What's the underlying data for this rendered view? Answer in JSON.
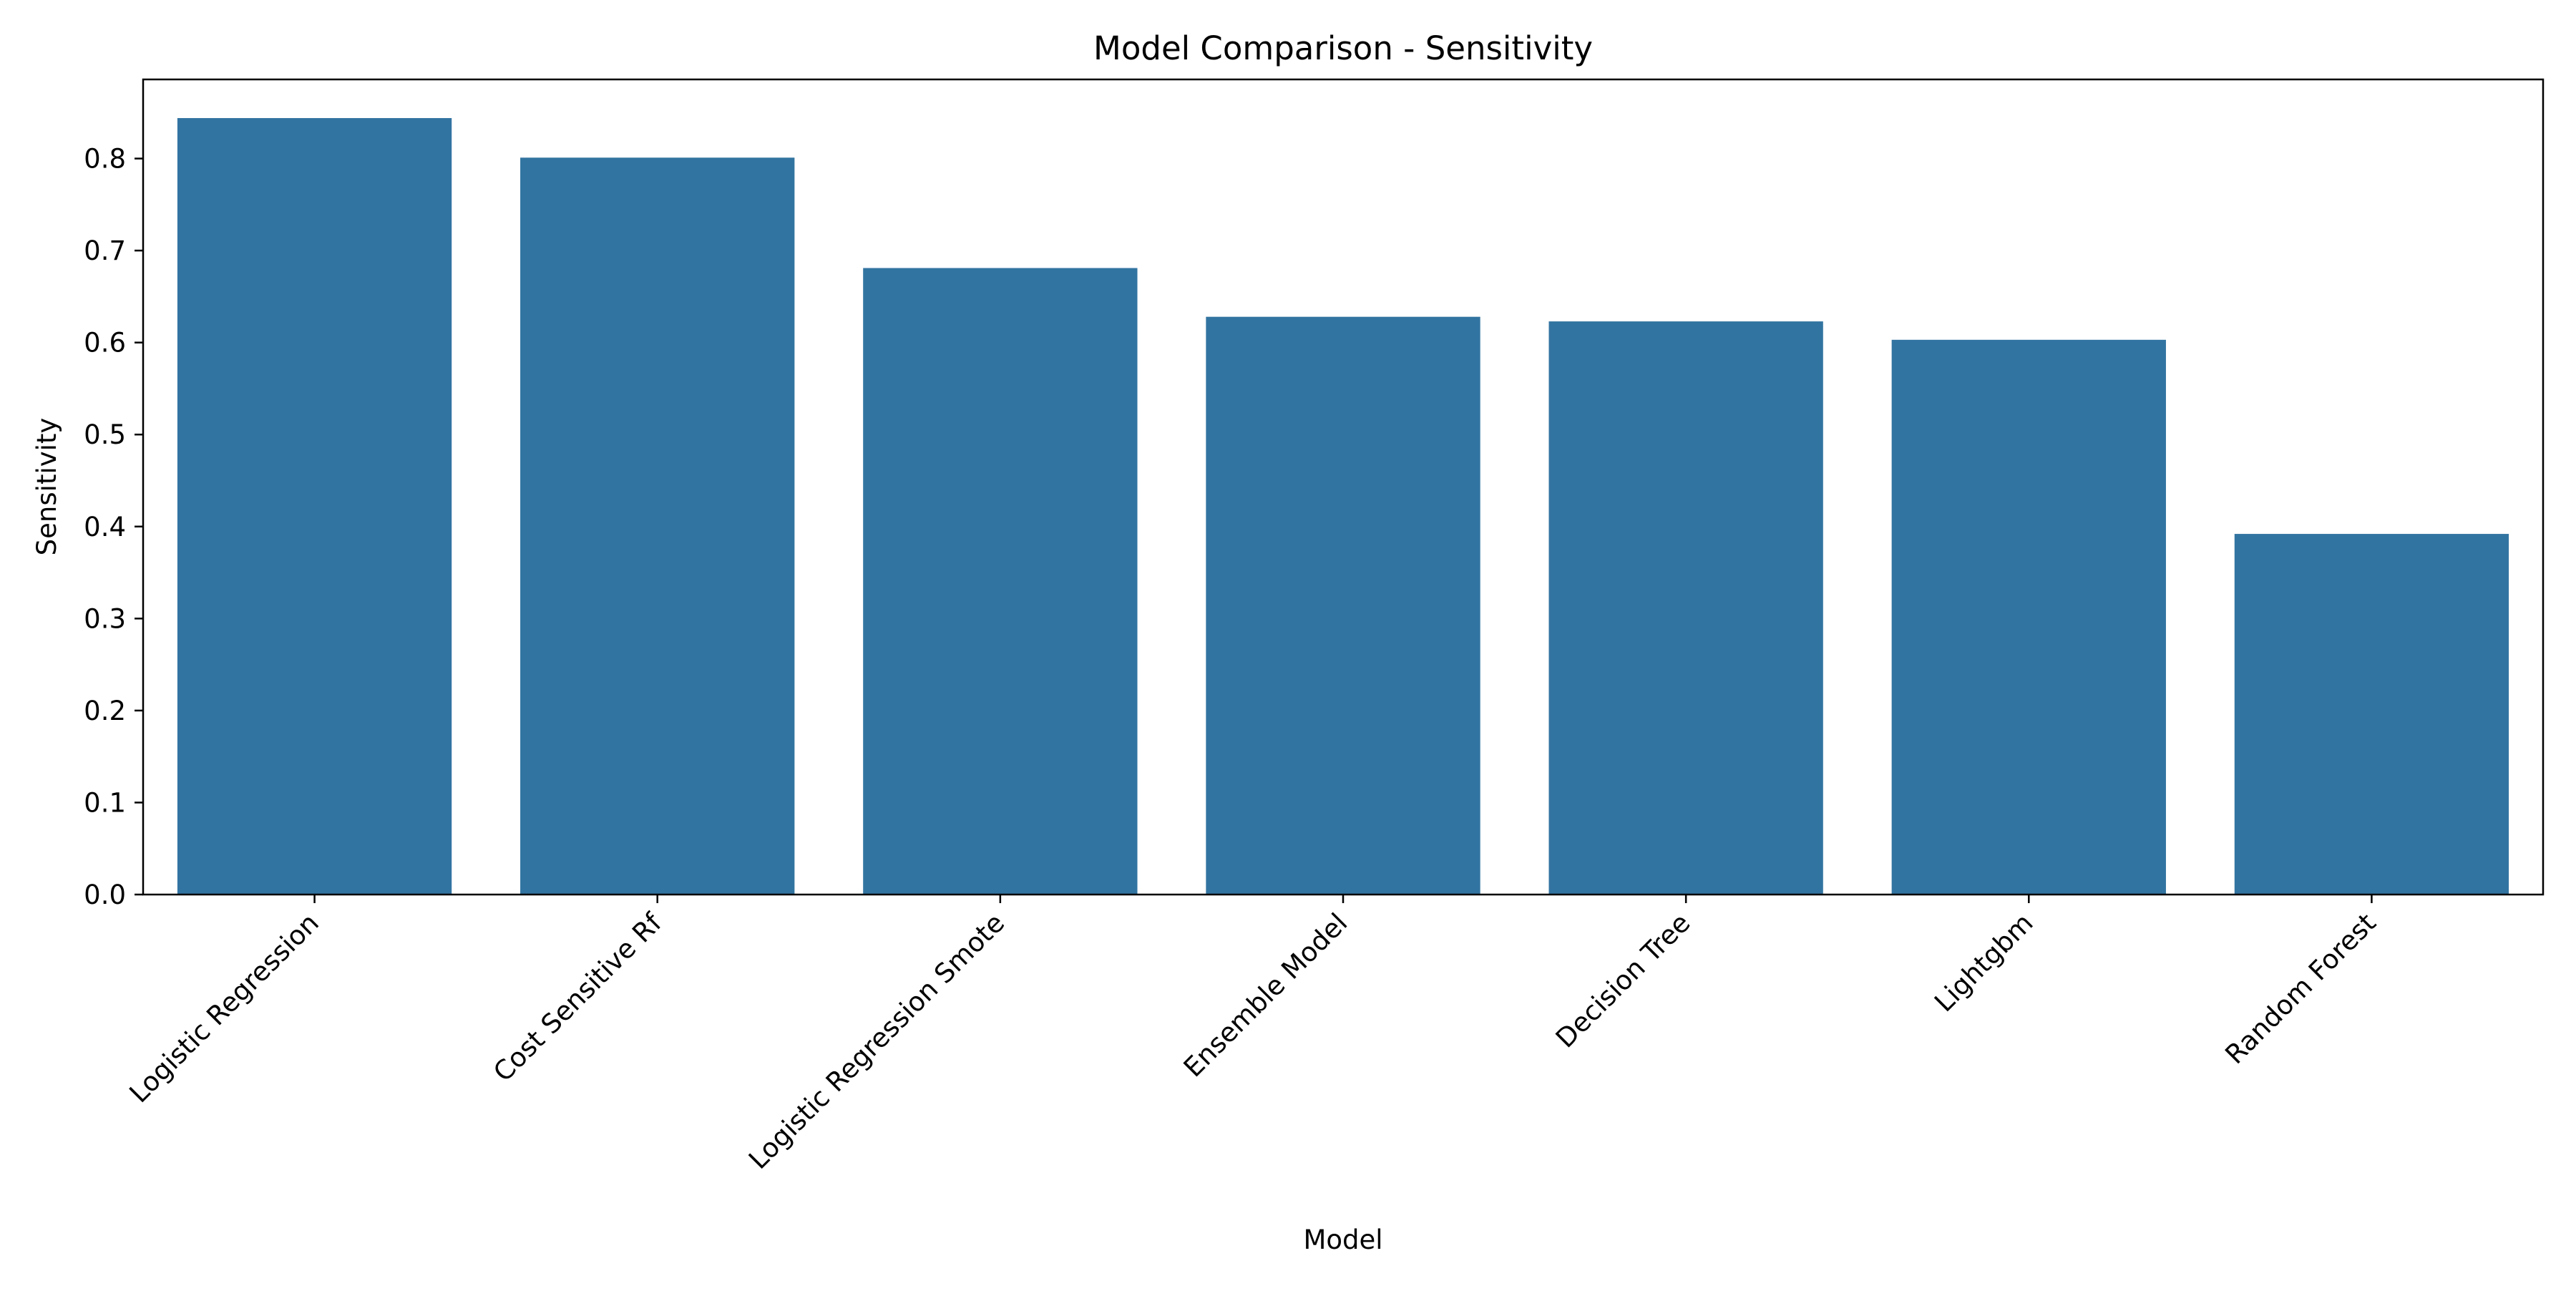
{
  "chart_data": {
    "type": "bar",
    "title": "Model Comparison - Sensitivity",
    "xlabel": "Model",
    "ylabel": "Sensitivity",
    "categories": [
      "Logistic Regression",
      "Cost Sensitive Rf",
      "Logistic Regression Smote",
      "Ensemble Model",
      "Decision Tree",
      "Lightgbm",
      "Random Forest"
    ],
    "values": [
      0.844,
      0.801,
      0.681,
      0.628,
      0.623,
      0.603,
      0.392
    ],
    "ylim": [
      0,
      0.886
    ],
    "yticks": [
      0.0,
      0.1,
      0.2,
      0.3,
      0.4,
      0.5,
      0.6,
      0.7,
      0.8
    ],
    "ytick_labels": [
      "0.0",
      "0.1",
      "0.2",
      "0.3",
      "0.4",
      "0.5",
      "0.6",
      "0.7",
      "0.8"
    ],
    "grid": false,
    "bar_color": "#3274a1",
    "xtick_rotation": -45
  }
}
